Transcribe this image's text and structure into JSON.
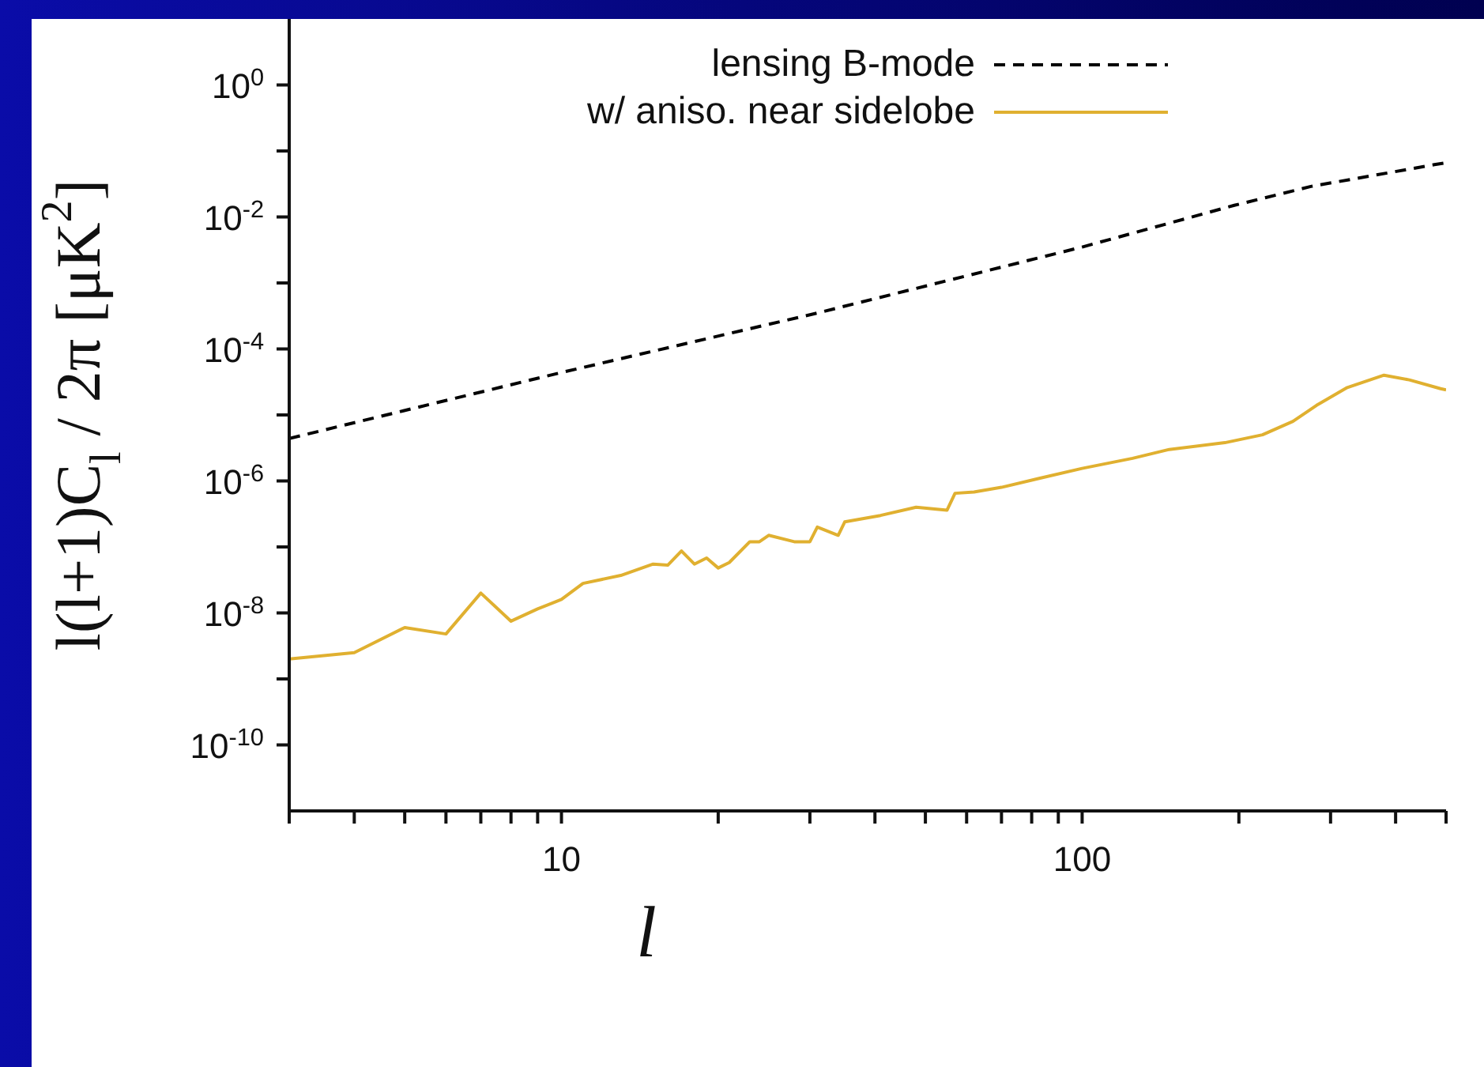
{
  "chart_data": {
    "type": "line",
    "xlabel": "l",
    "ylabel": "l(l+1)C$_{l}$ / 2π [μK$^{2}$]",
    "log": "xy",
    "xlim": [
      3,
      500
    ],
    "ylim": [
      1e-11,
      10
    ],
    "xticks": [
      {
        "value": 3,
        "label": null
      },
      {
        "value": 4,
        "label": null
      },
      {
        "value": 5,
        "label": null
      },
      {
        "value": 6,
        "label": null
      },
      {
        "value": 7,
        "label": null
      },
      {
        "value": 8,
        "label": null
      },
      {
        "value": 9,
        "label": null
      },
      10,
      {
        "value": 20,
        "label": null
      },
      {
        "value": 30,
        "label": null
      },
      {
        "value": 40,
        "label": null
      },
      {
        "value": 50,
        "label": null
      },
      {
        "value": 60,
        "label": null
      },
      {
        "value": 70,
        "label": null
      },
      {
        "value": 80,
        "label": null
      },
      {
        "value": 90,
        "label": null
      },
      100,
      {
        "value": 200,
        "label": null
      },
      {
        "value": 300,
        "label": null
      },
      {
        "value": 400,
        "label": null
      },
      {
        "value": 500,
        "label": null
      }
    ],
    "yticks": [
      {
        "value": 1e-10,
        "label": "10$^{-10}$"
      },
      {
        "value": 1e-09,
        "label": null
      },
      {
        "value": 1e-08,
        "label": "10$^{-8}$"
      },
      {
        "value": 1e-07,
        "label": null
      },
      {
        "value": 1e-06,
        "label": "10$^{-6}$"
      },
      {
        "value": 1e-05,
        "label": null
      },
      {
        "value": 0.0001,
        "label": "10$^{-4}$"
      },
      {
        "value": 0.001,
        "label": null
      },
      {
        "value": 0.01,
        "label": "10$^{-2}$"
      },
      {
        "value": 0.1,
        "label": null
      },
      {
        "value": 1,
        "label": "10$^{0}$"
      }
    ],
    "legend": "top right",
    "marker": "none",
    "series": [
      {
        "name": "lensing B-mode",
        "color": "#000000",
        "line_style": "dashed",
        "x": [
          3,
          10,
          31,
          100,
          196,
          275,
          475,
          500
        ],
        "values": [
          4.4e-06,
          4.4e-05,
          0.00035,
          0.0035,
          0.015,
          0.029,
          0.062,
          0.066
        ]
      },
      {
        "name": "w/ aniso. near sidelobe",
        "color": "#e0b030",
        "line_style": "solid",
        "x": [
          3,
          4,
          5,
          6,
          7,
          8,
          9,
          10,
          11,
          13,
          15,
          16,
          17,
          18,
          19,
          20,
          21,
          23,
          24,
          25,
          28,
          30,
          31,
          34,
          35,
          41,
          48,
          55,
          57,
          62,
          70,
          83,
          100,
          125,
          147,
          188,
          222,
          254,
          282,
          323,
          380,
          425,
          488,
          500
        ],
        "values": [
          2e-09,
          2.5e-09,
          6e-09,
          4.8e-09,
          2e-08,
          7.5e-09,
          1.15e-08,
          1.6e-08,
          2.8e-08,
          3.7e-08,
          5.5e-08,
          5.3e-08,
          8.7e-08,
          5.5e-08,
          6.8e-08,
          4.8e-08,
          5.8e-08,
          1.2e-07,
          1.2e-07,
          1.5e-07,
          1.2e-07,
          1.2e-07,
          2e-07,
          1.5e-07,
          2.4e-07,
          3e-07,
          4e-07,
          3.6e-07,
          6.5e-07,
          6.8e-07,
          8e-07,
          1.1e-06,
          1.55e-06,
          2.2e-06,
          3e-06,
          3.8e-06,
          5e-06,
          8e-06,
          1.4e-05,
          2.6e-05,
          4e-05,
          3.4e-05,
          2.5e-05,
          2.4e-05
        ]
      }
    ]
  }
}
